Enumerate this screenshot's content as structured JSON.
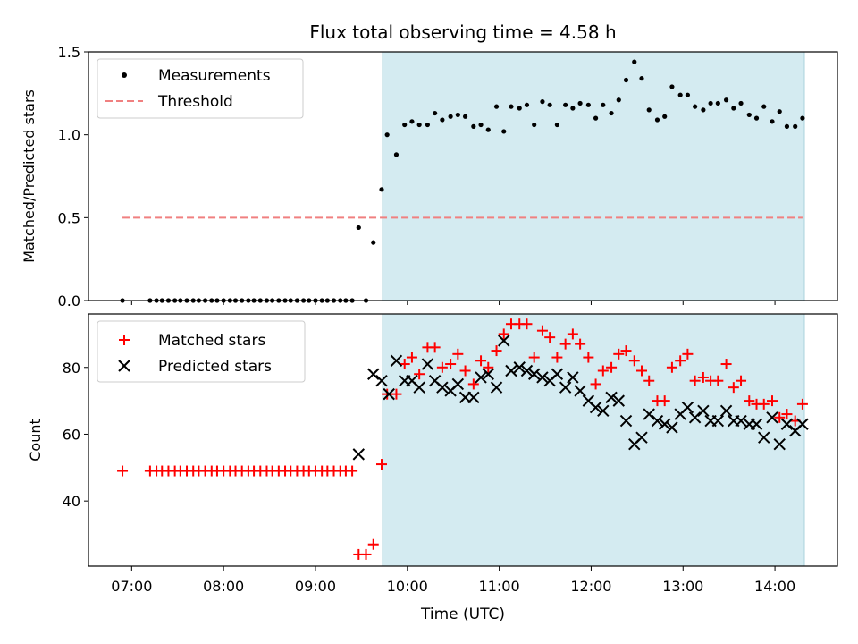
{
  "figure": {
    "title": "Flux total observing time = 4.58 h",
    "xlabel": "Time (UTC)",
    "shade_color": "#d4ebf1",
    "shade_edge": "#a9d2dc"
  },
  "x_ticks": [
    "07:00",
    "08:00",
    "09:00",
    "10:00",
    "11:00",
    "12:00",
    "13:00",
    "14:00"
  ],
  "chart_data": [
    {
      "type": "scatter",
      "panel": "top",
      "title": "Flux total observing time = 4.58 h",
      "ylabel": "Matched/Predicted stars",
      "xlabel": "",
      "xlim": [
        6.53,
        14.68
      ],
      "ylim": [
        0,
        1.5
      ],
      "yticks": [
        "0.0",
        "0.5",
        "1.0",
        "1.5"
      ],
      "shaded_region": [
        9.73,
        14.32
      ],
      "legend_position": "top-left",
      "series": [
        {
          "name": "Measurements",
          "marker": "dot",
          "color": "#000000",
          "x": [
            6.9,
            7.2,
            7.27,
            7.33,
            7.4,
            7.47,
            7.53,
            7.6,
            7.67,
            7.73,
            7.8,
            7.87,
            7.93,
            8.0,
            8.07,
            8.13,
            8.2,
            8.27,
            8.33,
            8.4,
            8.47,
            8.53,
            8.6,
            8.67,
            8.73,
            8.8,
            8.87,
            8.93,
            9.0,
            9.07,
            9.13,
            9.2,
            9.27,
            9.33,
            9.4,
            9.47,
            9.55,
            9.63,
            9.72,
            9.78,
            9.88,
            9.97,
            10.05,
            10.13,
            10.22,
            10.3,
            10.38,
            10.47,
            10.55,
            10.63,
            10.72,
            10.8,
            10.88,
            10.97,
            11.05,
            11.13,
            11.22,
            11.3,
            11.38,
            11.47,
            11.55,
            11.63,
            11.72,
            11.8,
            11.88,
            11.97,
            12.05,
            12.13,
            12.22,
            12.3,
            12.38,
            12.47,
            12.55,
            12.63,
            12.72,
            12.8,
            12.88,
            12.97,
            13.05,
            13.13,
            13.22,
            13.3,
            13.38,
            13.47,
            13.55,
            13.63,
            13.72,
            13.8,
            13.88,
            13.97,
            14.05,
            14.13,
            14.22,
            14.3
          ],
          "y": [
            0,
            0,
            0,
            0,
            0,
            0,
            0,
            0,
            0,
            0,
            0,
            0,
            0,
            0,
            0,
            0,
            0,
            0,
            0,
            0,
            0,
            0,
            0,
            0,
            0,
            0,
            0,
            0,
            0,
            0,
            0,
            0,
            0,
            0,
            0,
            0.44,
            0,
            0.35,
            0.67,
            1.0,
            0.88,
            1.06,
            1.08,
            1.06,
            1.06,
            1.13,
            1.09,
            1.11,
            1.12,
            1.11,
            1.05,
            1.06,
            1.03,
            1.17,
            1.02,
            1.17,
            1.16,
            1.18,
            1.06,
            1.2,
            1.18,
            1.06,
            1.18,
            1.16,
            1.19,
            1.18,
            1.1,
            1.18,
            1.13,
            1.21,
            1.33,
            1.44,
            1.34,
            1.15,
            1.09,
            1.11,
            1.29,
            1.24,
            1.24,
            1.17,
            1.15,
            1.19,
            1.19,
            1.21,
            1.16,
            1.19,
            1.12,
            1.1,
            1.17,
            1.08,
            1.14,
            1.05,
            1.05,
            1.1
          ]
        },
        {
          "name": "Threshold",
          "marker": "dashed-line",
          "color": "#f08080",
          "x": [
            6.9,
            14.3
          ],
          "y": [
            0.5,
            0.5
          ]
        }
      ]
    },
    {
      "type": "scatter",
      "panel": "bottom",
      "title": "",
      "ylabel": "Count",
      "xlabel": "Time (UTC)",
      "xlim": [
        6.53,
        14.68
      ],
      "ylim": [
        20.5,
        96
      ],
      "yticks": [
        "40",
        "60",
        "80"
      ],
      "shaded_region": [
        9.73,
        14.32
      ],
      "legend_position": "top-left",
      "series": [
        {
          "name": "Matched stars",
          "marker": "plus",
          "color": "#ff0000",
          "x": [
            6.9,
            7.2,
            7.27,
            7.33,
            7.4,
            7.47,
            7.53,
            7.6,
            7.67,
            7.73,
            7.8,
            7.87,
            7.93,
            8.0,
            8.07,
            8.13,
            8.2,
            8.27,
            8.33,
            8.4,
            8.47,
            8.53,
            8.6,
            8.67,
            8.73,
            8.8,
            8.87,
            8.93,
            9.0,
            9.07,
            9.13,
            9.2,
            9.27,
            9.33,
            9.4,
            9.47,
            9.55,
            9.63,
            9.72,
            9.78,
            9.88,
            9.97,
            10.05,
            10.13,
            10.22,
            10.3,
            10.38,
            10.47,
            10.55,
            10.63,
            10.72,
            10.8,
            10.88,
            10.97,
            11.05,
            11.13,
            11.22,
            11.3,
            11.38,
            11.47,
            11.55,
            11.63,
            11.72,
            11.8,
            11.88,
            11.97,
            12.05,
            12.13,
            12.22,
            12.3,
            12.38,
            12.47,
            12.55,
            12.63,
            12.72,
            12.8,
            12.88,
            12.97,
            13.05,
            13.13,
            13.22,
            13.3,
            13.38,
            13.47,
            13.55,
            13.63,
            13.72,
            13.8,
            13.88,
            13.97,
            14.05,
            14.13,
            14.22,
            14.3
          ],
          "y": [
            49,
            49,
            49,
            49,
            49,
            49,
            49,
            49,
            49,
            49,
            49,
            49,
            49,
            49,
            49,
            49,
            49,
            49,
            49,
            49,
            49,
            49,
            49,
            49,
            49,
            49,
            49,
            49,
            49,
            49,
            49,
            49,
            49,
            49,
            49,
            24,
            24,
            27,
            51,
            72,
            72,
            81,
            83,
            78,
            86,
            86,
            80,
            81,
            84,
            79,
            75,
            82,
            80,
            85,
            90,
            93,
            93,
            93,
            83,
            91,
            89,
            83,
            87,
            90,
            87,
            83,
            75,
            79,
            80,
            84,
            85,
            82,
            79,
            76,
            70,
            70,
            80,
            82,
            84,
            76,
            77,
            76,
            76,
            81,
            74,
            76,
            70,
            69,
            69,
            70,
            65,
            66,
            64,
            69
          ]
        },
        {
          "name": "Predicted stars",
          "marker": "x",
          "color": "#000000",
          "x": [
            9.47,
            9.63,
            9.72,
            9.8,
            9.88,
            9.97,
            10.05,
            10.13,
            10.22,
            10.3,
            10.38,
            10.47,
            10.55,
            10.63,
            10.72,
            10.8,
            10.88,
            10.97,
            11.05,
            11.13,
            11.22,
            11.3,
            11.38,
            11.47,
            11.55,
            11.63,
            11.72,
            11.8,
            11.88,
            11.97,
            12.05,
            12.13,
            12.22,
            12.3,
            12.38,
            12.47,
            12.55,
            12.63,
            12.72,
            12.8,
            12.88,
            12.97,
            13.05,
            13.13,
            13.22,
            13.3,
            13.38,
            13.47,
            13.55,
            13.63,
            13.72,
            13.8,
            13.88,
            13.97,
            14.05,
            14.13,
            14.22,
            14.3
          ],
          "y": [
            54,
            78,
            76,
            72,
            82,
            76,
            76,
            74,
            81,
            76,
            74,
            73,
            75,
            71,
            71,
            77,
            78,
            74,
            88,
            79,
            80,
            79,
            78,
            77,
            76,
            78,
            74,
            77,
            73,
            70,
            68,
            67,
            71,
            70,
            64,
            57,
            59,
            66,
            64,
            63,
            62,
            66,
            68,
            65,
            67,
            64,
            64,
            67,
            64,
            64,
            63,
            63,
            59,
            65,
            57,
            63,
            61,
            63
          ]
        }
      ]
    }
  ]
}
